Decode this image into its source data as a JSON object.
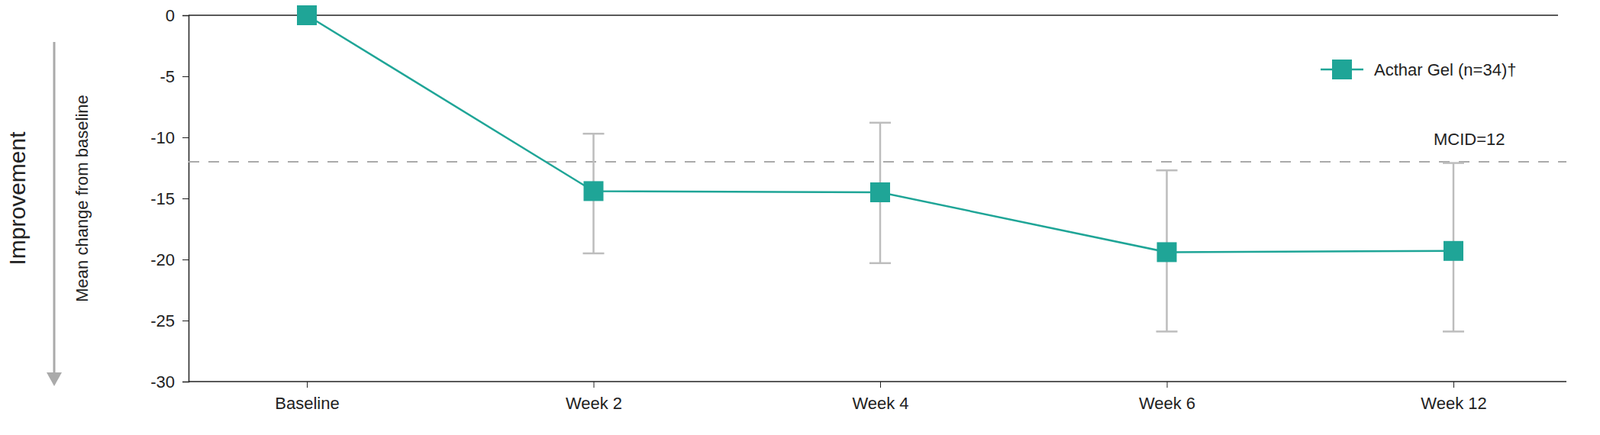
{
  "chart_data": {
    "type": "line",
    "y_label": "Mean change from baseline",
    "y_direction_label": "Improvement",
    "categories": [
      "Baseline",
      "Week 2",
      "Week 4",
      "Week 6",
      "Week 12"
    ],
    "series": [
      {
        "name": "Acthar Gel (n=34)†",
        "color": "#1fa597",
        "marker": "square",
        "values": [
          0,
          -14.4,
          -14.5,
          -19.4,
          -19.3
        ],
        "ci_lower": [
          null,
          -19.5,
          -20.3,
          -25.9,
          -25.9
        ],
        "ci_upper": [
          null,
          -9.7,
          -8.8,
          -12.7,
          -12.1
        ]
      }
    ],
    "annotations": [
      {
        "y": -12,
        "text": "MCID=12",
        "line_style": "dashed"
      }
    ],
    "ylim": [
      -30,
      0
    ],
    "yticks": [
      0,
      -5,
      -10,
      -15,
      -20,
      -25,
      -30
    ],
    "legend": "upper right",
    "grid": false
  }
}
